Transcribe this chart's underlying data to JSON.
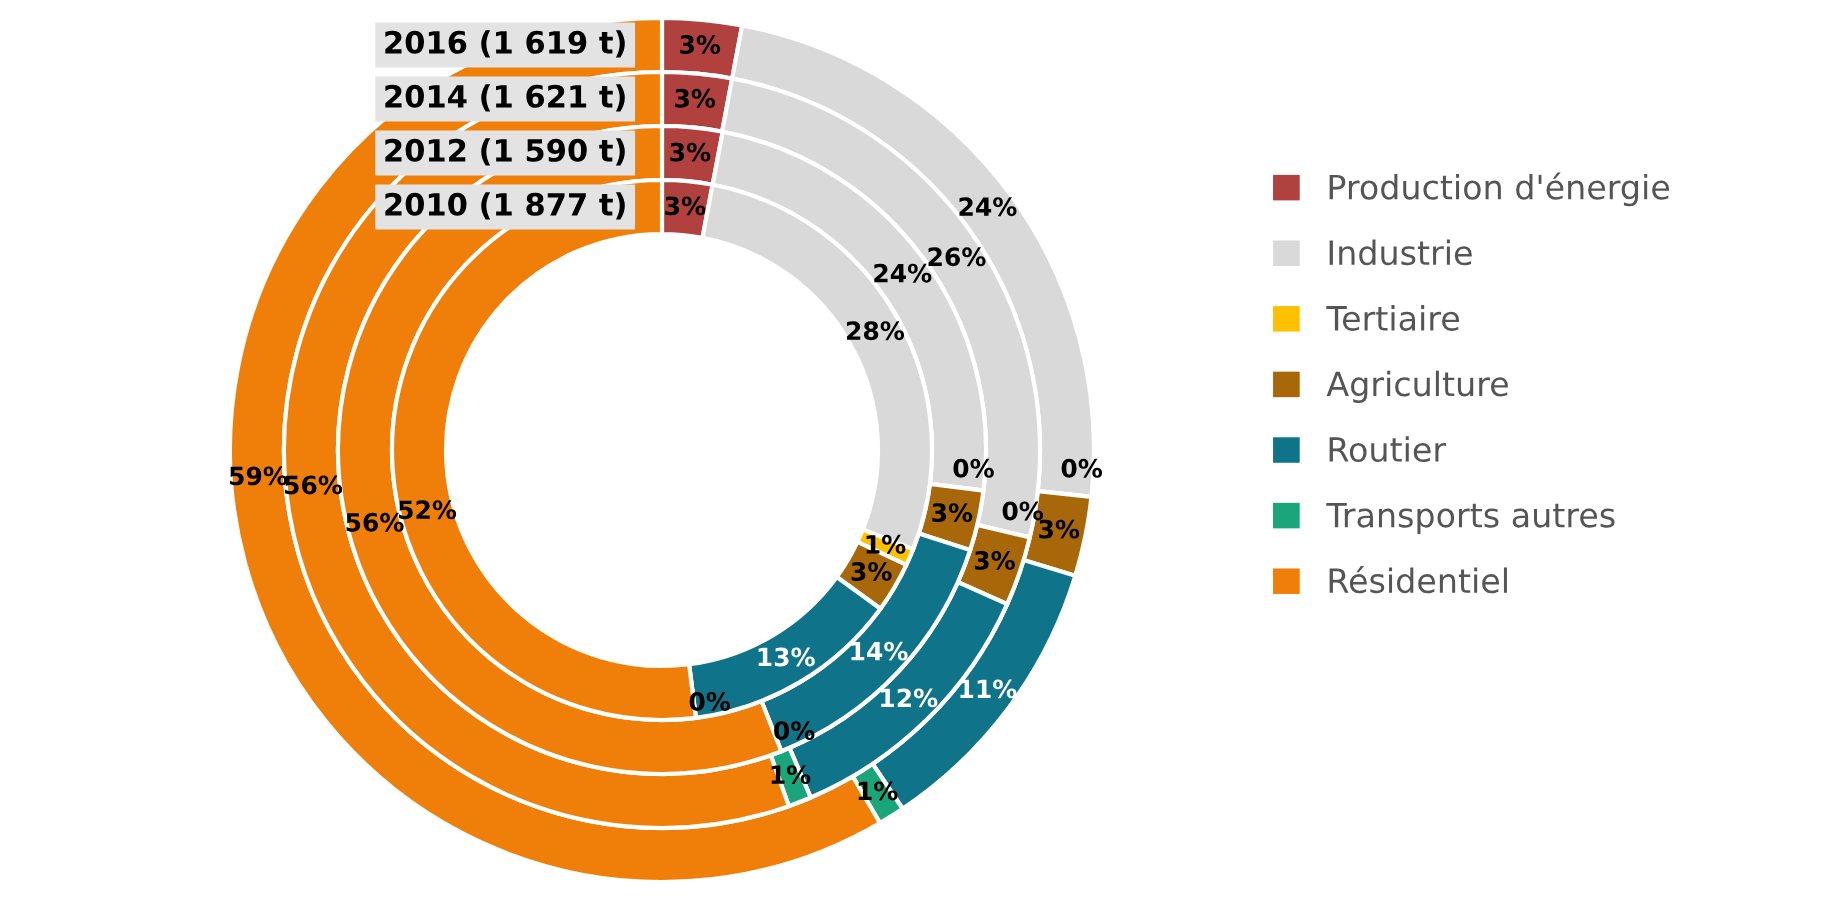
{
  "chart_data": {
    "type": "donut",
    "categories": [
      "Production d'énergie",
      "Industrie",
      "Tertiaire",
      "Agriculture",
      "Routier",
      "Transports autres",
      "Résidentiel"
    ],
    "colors": [
      "#b0413e",
      "#d9d9d9",
      "#ffc000",
      "#a8680a",
      "#0f7389",
      "#1aa57a",
      "#f07f09"
    ],
    "series": [
      {
        "name": "2016 (1 619 t)",
        "values": [
          3,
          24,
          0,
          3,
          11,
          1,
          59
        ],
        "value_labels": [
          "3%",
          "24%",
          "0%",
          "3%",
          "11%",
          "1%",
          "59%"
        ]
      },
      {
        "name": "2014 (1 621 t)",
        "values": [
          3,
          26,
          0,
          3,
          12,
          1,
          56
        ],
        "value_labels": [
          "3%",
          "26%",
          "0%",
          "3%",
          "12%",
          "1%",
          "56%"
        ]
      },
      {
        "name": "2012 (1 590 t)",
        "values": [
          3,
          24,
          0,
          3,
          14,
          0,
          56
        ],
        "value_labels": [
          "3%",
          "24%",
          "0%",
          "3%",
          "14%",
          "0%",
          "56%"
        ]
      },
      {
        "name": "2010 (1 877 t)",
        "values": [
          3,
          28,
          1,
          3,
          13,
          0,
          52
        ],
        "value_labels": [
          "3%",
          "28%",
          "1%",
          "3%",
          "13%",
          "0%",
          "52%"
        ]
      }
    ],
    "legend": "right"
  }
}
